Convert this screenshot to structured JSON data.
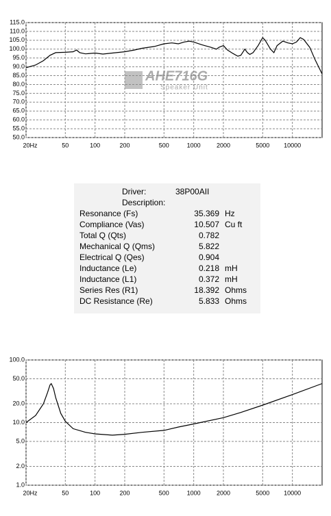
{
  "chart_data": [
    {
      "type": "line",
      "log_x": true,
      "log_y": false,
      "grid": true,
      "color": "#000000",
      "watermark": [
        "AHE716G",
        "Speaker Unit"
      ],
      "xlim": [
        20,
        20000
      ],
      "xticks": [
        {
          "value": 20,
          "label": "20Hz"
        },
        50,
        100,
        200,
        500,
        1000,
        2000,
        5000,
        10000
      ],
      "ylim": [
        50,
        115
      ],
      "yticks": [
        {
          "value": 50,
          "label": "50.0"
        },
        {
          "value": 55,
          "label": "55.0"
        },
        {
          "value": 60,
          "label": "60.0"
        },
        {
          "value": 65,
          "label": "65.0"
        },
        {
          "value": 70,
          "label": "70.0"
        },
        {
          "value": 75,
          "label": "75.0"
        },
        {
          "value": 80,
          "label": "80.0"
        },
        {
          "value": 85,
          "label": "85.0"
        },
        {
          "value": 90,
          "label": "90.0"
        },
        {
          "value": 95,
          "label": "95.0"
        },
        {
          "value": 100,
          "label": "100.0"
        },
        {
          "value": 105,
          "label": "105.0"
        },
        {
          "value": 110,
          "label": "110.0"
        },
        {
          "value": 115,
          "label": "115.0"
        }
      ],
      "x": [
        20,
        25,
        30,
        35,
        40,
        50,
        60,
        65,
        70,
        80,
        100,
        120,
        150,
        200,
        250,
        300,
        400,
        500,
        600,
        700,
        800,
        900,
        1000,
        1200,
        1500,
        1700,
        1800,
        2000,
        2200,
        2500,
        2800,
        3000,
        3300,
        3500,
        3700,
        4000,
        4500,
        5000,
        5300,
        6000,
        6500,
        7000,
        8000,
        9000,
        10000,
        11000,
        12000,
        13000,
        15000,
        17000,
        20000
      ],
      "values": [
        89.5,
        91,
        93.5,
        96.5,
        98,
        98.2,
        98.5,
        99.5,
        98,
        97.3,
        97.8,
        97.2,
        97.8,
        98.5,
        99.5,
        100.5,
        101.5,
        103,
        103.5,
        103,
        104,
        104.5,
        104,
        102.5,
        101,
        100,
        101,
        102,
        99.5,
        97.5,
        96,
        96.5,
        100,
        98,
        97,
        98,
        102,
        106.5,
        105,
        100,
        98,
        102,
        104.5,
        103.5,
        103,
        104,
        106.5,
        105.5,
        101,
        94,
        86
      ]
    },
    {
      "type": "line",
      "log_x": true,
      "log_y": true,
      "grid": true,
      "color": "#000000",
      "xlim": [
        20,
        20000
      ],
      "xticks": [
        {
          "value": 20,
          "label": "20Hz"
        },
        50,
        100,
        200,
        500,
        1000,
        2000,
        5000,
        10000
      ],
      "ylim": [
        1,
        100
      ],
      "yticks": [
        {
          "value": 1,
          "label": "1.0"
        },
        {
          "value": 2,
          "label": "2.0"
        },
        {
          "value": 5,
          "label": "5.0"
        },
        {
          "value": 10,
          "label": "10.0"
        },
        {
          "value": 20,
          "label": "20.0"
        },
        {
          "value": 50,
          "label": "50.0"
        },
        {
          "value": 100,
          "label": "100.0"
        }
      ],
      "x": [
        20,
        25,
        30,
        33,
        35,
        36,
        38,
        40,
        45,
        50,
        60,
        80,
        100,
        150,
        200,
        300,
        500,
        700,
        1000,
        2000,
        3000,
        5000,
        10000,
        20000
      ],
      "values": [
        10,
        13,
        20,
        30,
        40,
        42,
        35,
        25,
        14,
        10.5,
        8,
        7,
        6.6,
        6.3,
        6.5,
        7,
        7.5,
        8.5,
        9.5,
        12,
        14.5,
        19,
        28,
        42
      ]
    }
  ],
  "parameters": {
    "header": [
      {
        "label": "Driver:",
        "value": "38P00AII"
      },
      {
        "label": "Description:"
      }
    ],
    "rows": [
      [
        "Resonance (Fs)",
        "35.369",
        "Hz"
      ],
      [
        "Compliance (Vas)",
        "10.507",
        "Cu ft"
      ],
      [
        "Total Q (Qts)",
        "0.782"
      ],
      [
        "Mechanical Q (Qms)",
        "5.822"
      ],
      [
        "Electrical Q (Qes)",
        "0.904"
      ],
      [
        "Inductance (Le)",
        "0.218",
        "mH"
      ],
      [
        "Inductance (L1)",
        "0.372",
        "mH"
      ],
      [
        "Series Res (R1)",
        "18.392",
        "Ohms"
      ],
      [
        "DC Resistance (Re)",
        "5.833",
        "Ohms"
      ]
    ]
  }
}
